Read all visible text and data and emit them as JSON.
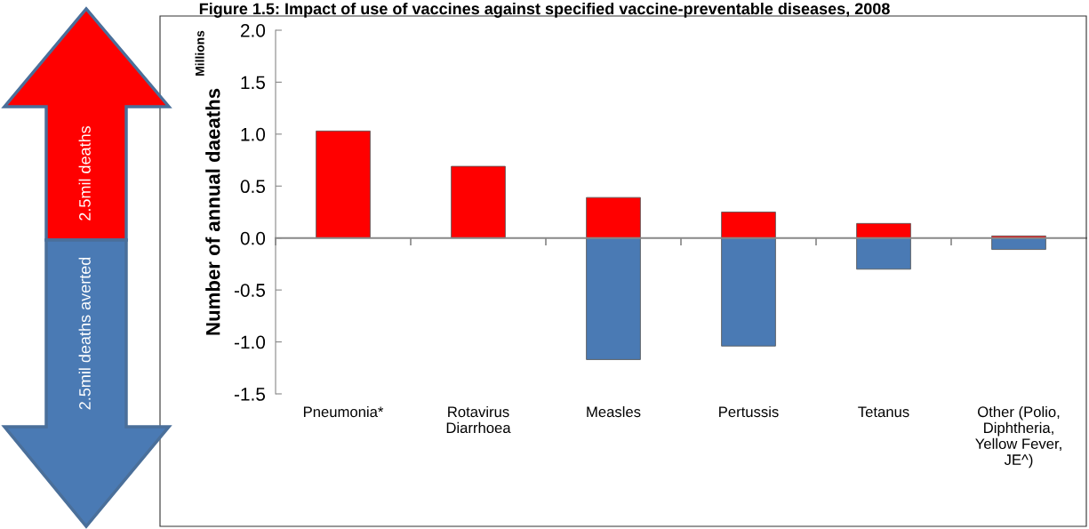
{
  "chart_data": {
    "type": "bar",
    "title": "Figure 1.5: Impact of use of vaccines against specified vaccine-preventable diseases, 2008",
    "ylabel": "Number of annual daeaths",
    "categories": [
      "Pneumonia*",
      "Rotavirus\nDiarrhoea",
      "Measles",
      "Pertussis",
      "Tetanus",
      "Other (Polio,\nDiphtheria,\nYellow Fever,\nJE^)"
    ],
    "series": [
      {
        "color": "#ff0000",
        "values": [
          1.03,
          0.69,
          0.39,
          0.25,
          0.14,
          0.02
        ]
      },
      {
        "color": "#4a7ab4",
        "values": [
          null,
          null,
          -1.17,
          -1.04,
          -0.3,
          -0.11
        ]
      }
    ],
    "ylim": [
      -1.5,
      2.0
    ],
    "yticks": [
      {
        "value": -1.5,
        "label": "-1.5"
      },
      {
        "value": -1.0,
        "label": "-1.0"
      },
      {
        "value": -0.5,
        "label": "-0.5"
      },
      {
        "value": 0.0,
        "label": "0.0"
      },
      {
        "value": 0.5,
        "label": "0.5"
      },
      {
        "value": 1.0,
        "label": "1.0"
      },
      {
        "value": 1.5,
        "label": "1.5"
      },
      {
        "value": 2.0,
        "label": "2.0"
      }
    ],
    "stacked": true,
    "legend": false,
    "annotations": [
      "Millions",
      "2.5mil deaths",
      "2.5mil deaths averted"
    ]
  }
}
